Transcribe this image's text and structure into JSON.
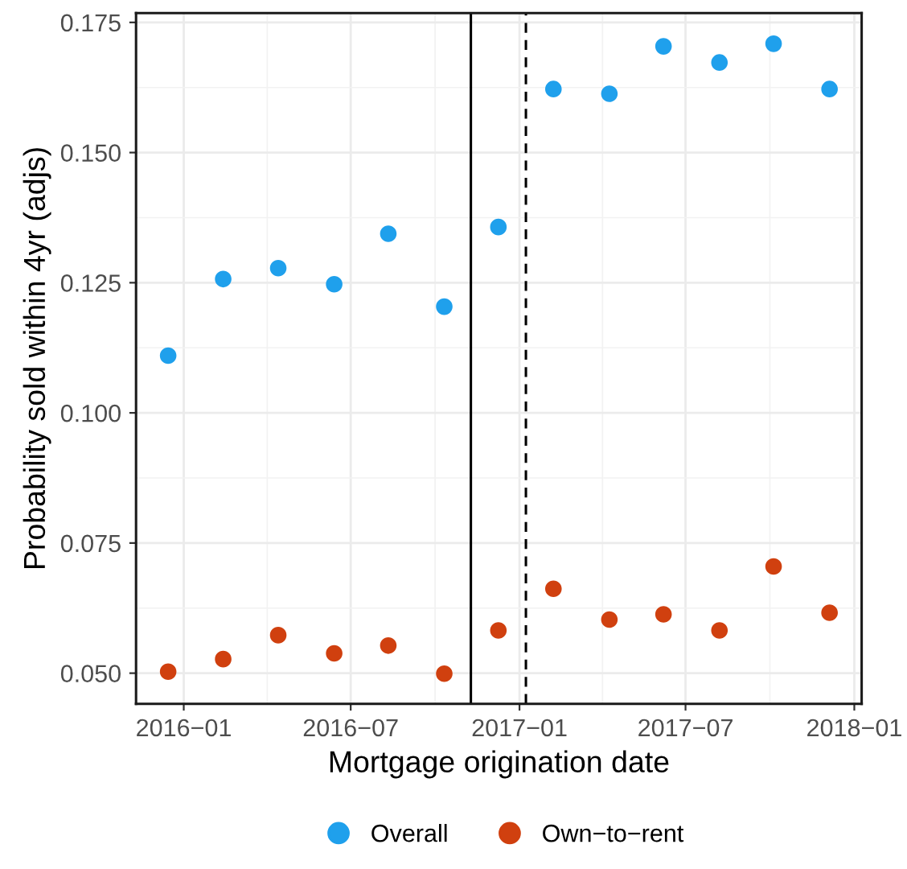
{
  "chart_data": {
    "type": "scatter",
    "xlabel": "Mortgage origination date",
    "ylabel": "Probability sold within 4yr (adjs)",
    "x": [
      "2015-12-15",
      "2016-02-13",
      "2016-04-13",
      "2016-06-13",
      "2016-08-11",
      "2016-10-11",
      "2016-12-09",
      "2017-02-07",
      "2017-04-09",
      "2017-06-07",
      "2017-08-07",
      "2017-10-05",
      "2017-12-05"
    ],
    "series": [
      {
        "name": "Overall",
        "color": "#1fa0ec",
        "values": [
          0.111,
          0.1257,
          0.1278,
          0.1247,
          0.1344,
          0.1204,
          0.1357,
          0.1622,
          0.1613,
          0.1704,
          0.1673,
          0.1709,
          0.1622
        ]
      },
      {
        "name": "Own−to−rent",
        "color": "#d0400f",
        "values": [
          0.0503,
          0.0527,
          0.0573,
          0.0538,
          0.0553,
          0.0499,
          0.0582,
          0.0662,
          0.0603,
          0.0613,
          0.0582,
          0.0705,
          0.0616
        ]
      }
    ],
    "xlim": [
      "2015-11-10",
      "2018-01-09"
    ],
    "xticks": [
      {
        "value": "2016-01-01",
        "label": "2016−01"
      },
      {
        "value": "2016-07-01",
        "label": "2016−07"
      },
      {
        "value": "2017-01-01",
        "label": "2017−01"
      },
      {
        "value": "2017-07-01",
        "label": "2017−07"
      },
      {
        "value": "2018-01-01",
        "label": "2018−01"
      }
    ],
    "ylim": [
      0.0441,
      0.1768
    ],
    "yticks": [
      {
        "value": 0.05,
        "label": "0.050"
      },
      {
        "value": 0.075,
        "label": "0.075"
      },
      {
        "value": 0.1,
        "label": "0.100"
      },
      {
        "value": 0.125,
        "label": "0.125"
      },
      {
        "value": 0.15,
        "label": "0.150"
      },
      {
        "value": 0.175,
        "label": "0.175"
      }
    ],
    "ref_lines": [
      {
        "axis": "x",
        "value": "2016-11-09",
        "color": "#000000",
        "line_style": "solid"
      },
      {
        "axis": "x",
        "value": "2017-01-08",
        "color": "#000000",
        "line_style": "dashed"
      }
    ],
    "grid": true,
    "legend": "bottom",
    "marker": "circle"
  }
}
